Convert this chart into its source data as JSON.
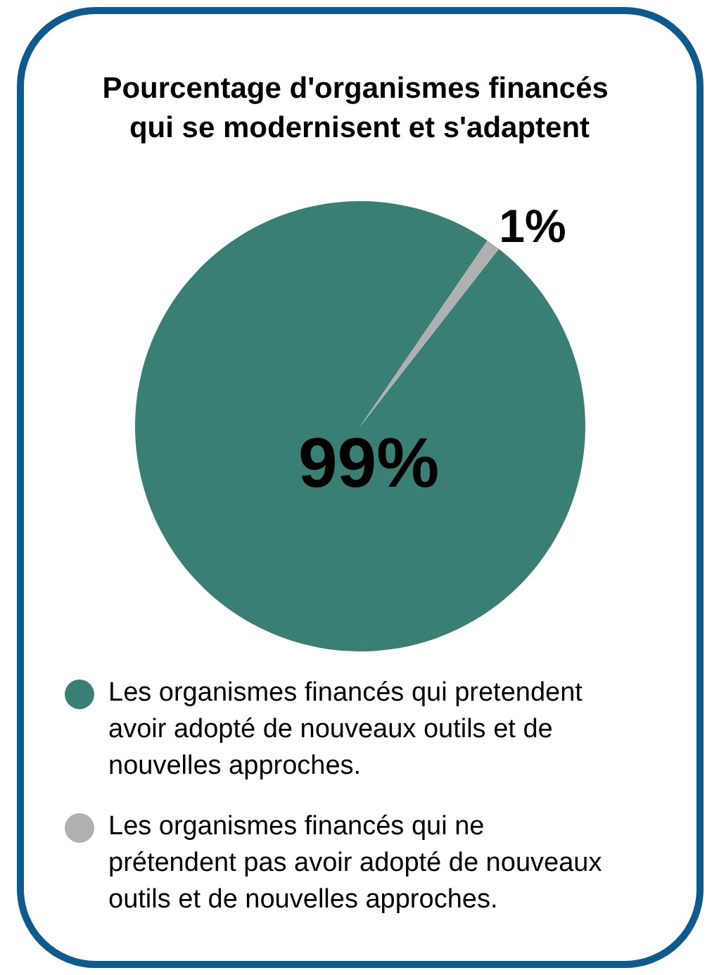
{
  "chart_data": {
    "type": "pie",
    "title": "Pourcentage d'organismes financés qui se modernisent et s'adaptent",
    "categories": [
      "Les organismes financés qui pretendent avoir adopté de nouveaux outils et de nouvelles approches.",
      "Les organismes financés qui ne prétendent pas avoir adopté de nouveaux outils et de nouvelles approches."
    ],
    "values": [
      99,
      1
    ],
    "colors": [
      "#3a7f73",
      "#b0b0b0"
    ],
    "value_labels": [
      "99%",
      "1%"
    ],
    "legend": "bottom"
  }
}
